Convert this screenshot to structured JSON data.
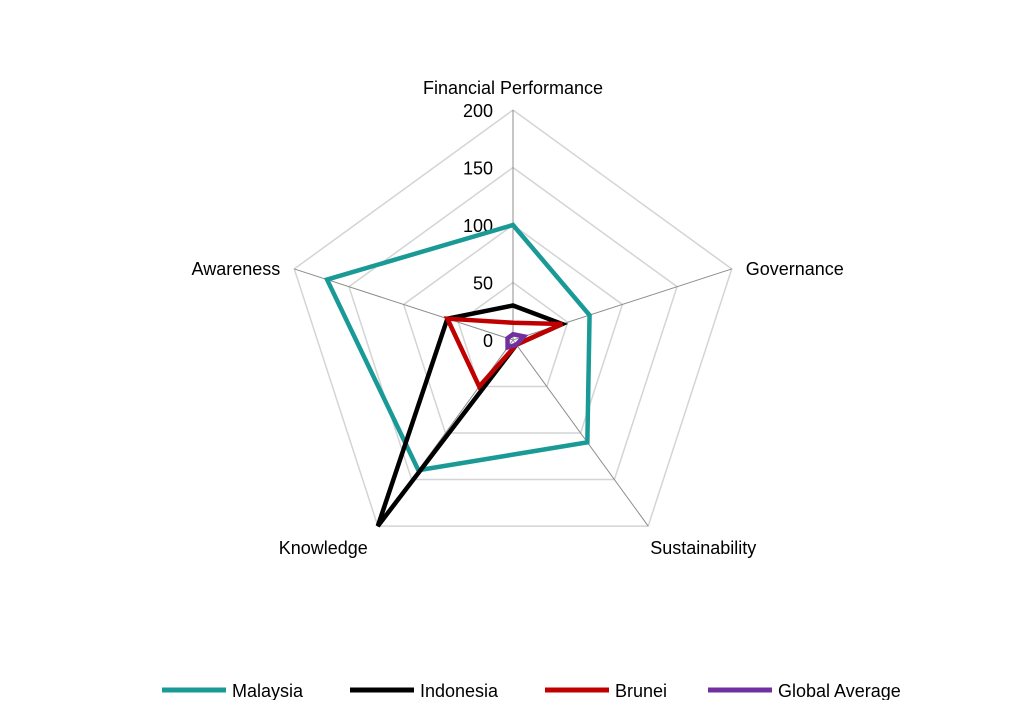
{
  "chart_data": {
    "type": "radar",
    "title": "",
    "axes": [
      "Financial Performance",
      "Governance",
      "Sustainability",
      "Knowledge",
      "Awareness"
    ],
    "ticks": [
      "0",
      "50",
      "100",
      "150",
      "200"
    ],
    "tick_values": [
      0,
      50,
      100,
      150,
      200
    ],
    "range": [
      0,
      200
    ],
    "grid": true,
    "legend_position": "bottom",
    "series": [
      {
        "name": "Malaysia",
        "color": "#1a9a96",
        "values": [
          100,
          70,
          110,
          140,
          170
        ]
      },
      {
        "name": "Indonesia",
        "color": "#000000",
        "values": [
          30,
          45,
          5,
          200,
          60
        ]
      },
      {
        "name": "Brunei",
        "color": "#c00000",
        "values": [
          15,
          45,
          5,
          50,
          60
        ]
      },
      {
        "name": "Global Average",
        "color": "#7030a0",
        "values": [
          5,
          10,
          5,
          8,
          5
        ]
      }
    ]
  }
}
